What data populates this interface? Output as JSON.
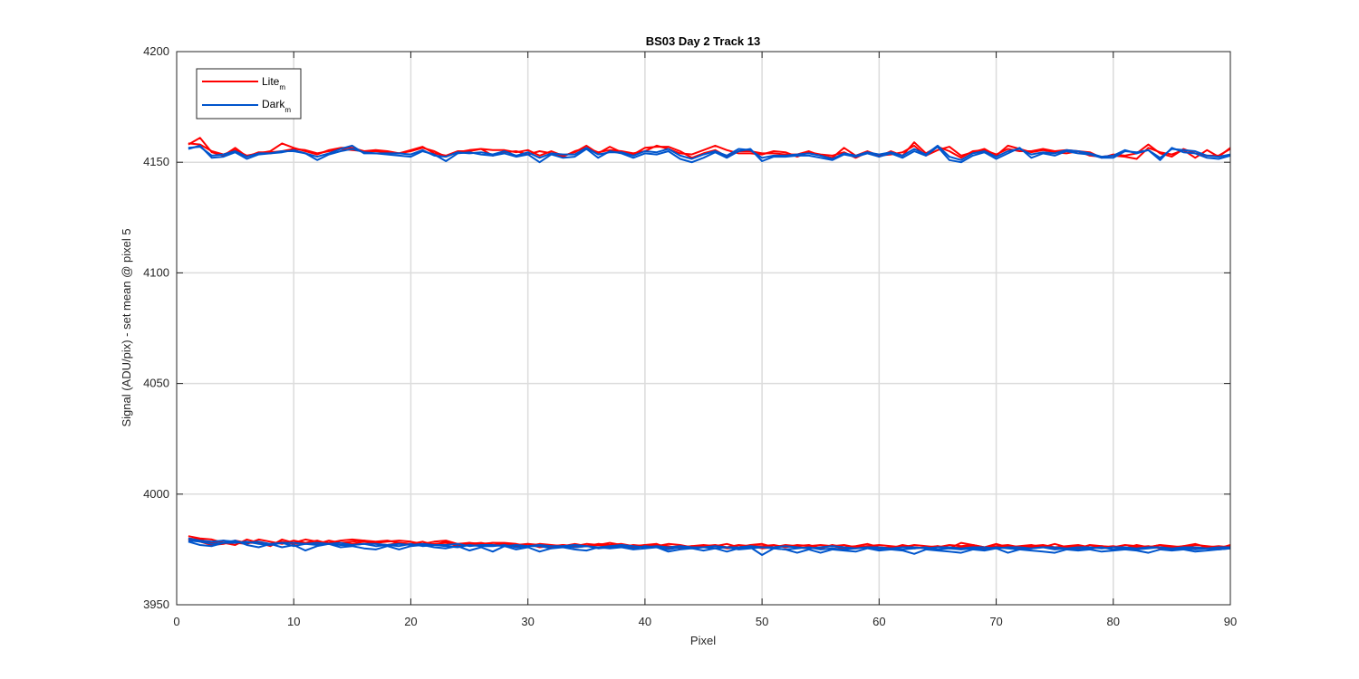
{
  "chart_data": {
    "type": "line",
    "title": "BS03 Day 2 Track 13",
    "xlabel": "Pixel",
    "ylabel": "Signal (ADU/pix) - set mean @ pixel 5",
    "xlim": [
      0,
      90
    ],
    "ylim": [
      3950,
      4200
    ],
    "xticks": [
      0,
      10,
      20,
      30,
      40,
      50,
      60,
      70,
      80,
      90
    ],
    "yticks": [
      3950,
      4000,
      4050,
      4100,
      4150,
      4200
    ],
    "grid": true,
    "legend_position": "top-left",
    "legend": [
      {
        "label": "Lite",
        "subscript": "m",
        "color": "#ff0000"
      },
      {
        "label": "Dark",
        "subscript": "m",
        "color": "#0055cc"
      }
    ],
    "x": [
      1,
      2,
      3,
      4,
      5,
      6,
      7,
      8,
      9,
      10,
      11,
      12,
      13,
      14,
      15,
      16,
      17,
      18,
      19,
      20,
      21,
      22,
      23,
      24,
      25,
      26,
      27,
      28,
      29,
      30,
      31,
      32,
      33,
      34,
      35,
      36,
      37,
      38,
      39,
      40,
      41,
      42,
      43,
      44,
      45,
      46,
      47,
      48,
      49,
      50,
      51,
      52,
      53,
      54,
      55,
      56,
      57,
      58,
      59,
      60,
      61,
      62,
      63,
      64,
      65,
      66,
      67,
      68,
      69,
      70,
      71,
      72,
      73,
      74,
      75,
      76,
      77,
      78,
      79,
      80,
      81,
      82,
      83,
      84,
      85,
      86,
      87,
      88,
      89,
      90
    ],
    "series": [
      {
        "group": "Lite",
        "color": "#ff0000",
        "values": [
          4158.5,
          4158.0,
          4155.0,
          4153.5,
          4155.5,
          4153.0,
          4154.0,
          4155.0,
          4158.5,
          4156.5,
          4155.0,
          4153.5,
          4155.5,
          4156.5,
          4156.5,
          4155.0,
          4155.0,
          4154.5,
          4154.0,
          4155.0,
          4156.5,
          4155.0,
          4152.5,
          4154.5,
          4155.5,
          4156.0,
          4155.5,
          4155.5,
          4154.5,
          4155.5,
          4153.0,
          4155.0,
          4153.0,
          4154.5,
          4157.5,
          4154.0,
          4157.0,
          4154.5,
          4153.5,
          4156.5,
          4157.0,
          4157.0,
          4155.0,
          4152.0,
          4154.0,
          4155.5,
          4152.5,
          4155.0,
          4155.0,
          4154.0,
          4154.0,
          4153.5,
          4153.5,
          4155.0,
          4153.0,
          4152.0,
          4156.5,
          4153.0,
          4155.0,
          4153.0,
          4153.5,
          4154.5,
          4157.5,
          4153.0,
          4155.5,
          4157.0,
          4153.0,
          4154.5,
          4156.0,
          4153.0,
          4157.5,
          4156.0,
          4154.5,
          4155.5,
          4154.5,
          4154.0,
          4155.0,
          4153.0,
          4152.5,
          4153.0,
          4152.5,
          4151.5,
          4156.5,
          4154.5,
          4153.5,
          4155.5,
          4152.0,
          4155.5,
          4152.5,
          4156.5
        ]
      },
      {
        "group": "Lite",
        "color": "#ff0000",
        "values": [
          4158.0,
          4161.0,
          4154.5,
          4153.0,
          4156.5,
          4152.5,
          4154.5,
          4154.5,
          4155.0,
          4156.0,
          4155.5,
          4154.0,
          4155.0,
          4156.0,
          4155.5,
          4155.0,
          4155.5,
          4155.0,
          4154.0,
          4155.5,
          4157.0,
          4154.0,
          4153.0,
          4155.0,
          4155.0,
          4156.0,
          4153.0,
          4154.5,
          4155.0,
          4153.5,
          4155.0,
          4154.0,
          4152.5,
          4155.0,
          4156.5,
          4154.5,
          4155.5,
          4155.0,
          4154.0,
          4155.0,
          4157.5,
          4156.0,
          4154.0,
          4153.5,
          4155.5,
          4157.5,
          4155.5,
          4154.0,
          4154.0,
          4153.5,
          4155.0,
          4154.5,
          4152.5,
          4154.5,
          4153.5,
          4153.0,
          4154.5,
          4152.0,
          4154.5,
          4152.5,
          4155.0,
          4153.0,
          4159.0,
          4154.0,
          4157.0,
          4155.0,
          4152.0,
          4155.0,
          4155.5,
          4153.5,
          4156.0,
          4155.0,
          4155.0,
          4156.0,
          4155.0,
          4155.5,
          4155.0,
          4154.5,
          4152.0,
          4153.5,
          4153.0,
          4154.0,
          4158.0,
          4154.0,
          4152.5,
          4156.0,
          4154.0,
          4153.0,
          4153.0,
          4156.0
        ]
      },
      {
        "group": "Dark",
        "color": "#0055cc",
        "values": [
          4156.0,
          4157.5,
          4152.0,
          4152.5,
          4154.5,
          4151.5,
          4153.5,
          4154.0,
          4154.5,
          4155.5,
          4154.0,
          4151.0,
          4153.5,
          4155.0,
          4156.0,
          4154.5,
          4154.0,
          4153.5,
          4153.0,
          4152.5,
          4155.0,
          4153.5,
          4150.5,
          4154.0,
          4154.5,
          4153.5,
          4153.0,
          4154.0,
          4152.5,
          4153.5,
          4150.0,
          4153.5,
          4152.0,
          4152.5,
          4156.0,
          4152.0,
          4155.0,
          4154.0,
          4152.0,
          4154.0,
          4153.5,
          4155.0,
          4151.5,
          4150.0,
          4152.0,
          4154.5,
          4152.0,
          4155.0,
          4156.0,
          4150.5,
          4152.5,
          4152.5,
          4153.0,
          4153.0,
          4152.0,
          4151.0,
          4153.5,
          4152.5,
          4154.0,
          4152.5,
          4154.0,
          4152.0,
          4155.0,
          4153.0,
          4157.0,
          4151.0,
          4150.0,
          4153.0,
          4154.5,
          4151.5,
          4154.0,
          4156.5,
          4152.0,
          4154.0,
          4153.0,
          4155.0,
          4154.0,
          4153.5,
          4152.0,
          4152.0,
          4155.0,
          4154.5,
          4155.5,
          4151.0,
          4156.5,
          4154.5,
          4154.0,
          4152.0,
          4151.5,
          4153.0
        ]
      },
      {
        "group": "Dark",
        "color": "#0055cc",
        "values": [
          4156.5,
          4157.0,
          4153.0,
          4153.5,
          4155.0,
          4152.5,
          4154.0,
          4154.0,
          4155.0,
          4155.0,
          4154.0,
          4152.5,
          4154.0,
          4156.0,
          4157.5,
          4154.0,
          4154.0,
          4154.0,
          4154.0,
          4153.5,
          4155.5,
          4153.0,
          4152.5,
          4154.5,
          4154.0,
          4154.5,
          4153.5,
          4155.0,
          4153.0,
          4154.5,
          4152.0,
          4154.0,
          4153.5,
          4153.5,
          4156.5,
          4153.5,
          4154.5,
          4154.5,
          4153.0,
          4155.0,
          4154.5,
          4156.0,
          4153.0,
          4151.5,
          4153.5,
          4155.0,
          4153.0,
          4156.0,
          4155.5,
          4152.0,
          4153.0,
          4153.0,
          4153.5,
          4154.0,
          4153.0,
          4151.5,
          4154.0,
          4153.0,
          4154.5,
          4153.5,
          4154.5,
          4153.0,
          4156.0,
          4153.5,
          4157.5,
          4152.5,
          4151.0,
          4154.0,
          4155.0,
          4152.5,
          4155.0,
          4156.0,
          4153.5,
          4154.5,
          4154.0,
          4155.5,
          4155.0,
          4154.0,
          4152.5,
          4153.0,
          4155.5,
          4154.0,
          4155.5,
          4152.0,
          4156.0,
          4155.5,
          4155.0,
          4153.0,
          4152.5,
          4153.5
        ]
      },
      {
        "group": "Lite",
        "color": "#ff0000",
        "values": [
          3981.0,
          3980.0,
          3979.5,
          3978.0,
          3977.0,
          3979.5,
          3978.0,
          3976.5,
          3979.5,
          3978.0,
          3979.5,
          3978.5,
          3978.0,
          3979.0,
          3979.5,
          3979.0,
          3978.5,
          3979.0,
          3978.0,
          3977.5,
          3978.5,
          3977.0,
          3978.5,
          3977.0,
          3978.0,
          3977.5,
          3978.0,
          3977.5,
          3977.0,
          3977.5,
          3976.0,
          3976.5,
          3977.0,
          3976.5,
          3977.5,
          3977.0,
          3978.0,
          3977.0,
          3976.0,
          3977.0,
          3977.5,
          3975.5,
          3976.0,
          3976.5,
          3977.0,
          3976.5,
          3977.5,
          3976.0,
          3977.0,
          3977.5,
          3976.0,
          3977.0,
          3976.5,
          3977.0,
          3975.5,
          3977.0,
          3976.0,
          3976.5,
          3977.5,
          3976.0,
          3975.5,
          3977.0,
          3976.0,
          3975.5,
          3976.5,
          3975.5,
          3978.0,
          3977.0,
          3976.0,
          3977.5,
          3976.0,
          3976.5,
          3977.0,
          3976.0,
          3977.5,
          3976.0,
          3975.5,
          3977.0,
          3976.5,
          3976.0,
          3975.5,
          3977.0,
          3976.0,
          3977.0,
          3975.5,
          3976.5,
          3977.5,
          3976.0,
          3975.5,
          3977.0
        ]
      },
      {
        "group": "Lite",
        "color": "#ff0000",
        "values": [
          3980.0,
          3979.5,
          3978.0,
          3979.0,
          3978.0,
          3977.5,
          3979.5,
          3978.5,
          3977.5,
          3979.0,
          3978.0,
          3977.5,
          3979.0,
          3978.0,
          3978.5,
          3979.0,
          3978.0,
          3978.5,
          3979.0,
          3978.5,
          3977.5,
          3978.5,
          3979.0,
          3977.5,
          3978.0,
          3977.0,
          3978.0,
          3978.0,
          3977.5,
          3976.5,
          3977.5,
          3977.0,
          3976.5,
          3977.5,
          3976.5,
          3977.5,
          3977.0,
          3977.5,
          3976.5,
          3977.0,
          3976.5,
          3977.5,
          3977.0,
          3976.0,
          3976.5,
          3977.0,
          3976.0,
          3977.0,
          3976.5,
          3976.5,
          3977.0,
          3976.0,
          3977.0,
          3976.5,
          3977.0,
          3976.5,
          3977.0,
          3976.0,
          3976.5,
          3977.0,
          3976.5,
          3976.0,
          3977.0,
          3976.5,
          3976.0,
          3977.0,
          3976.5,
          3977.0,
          3976.0,
          3976.5,
          3977.0,
          3976.0,
          3976.5,
          3977.0,
          3976.0,
          3976.5,
          3977.0,
          3976.0,
          3976.5,
          3976.0,
          3977.0,
          3976.5,
          3976.0,
          3977.0,
          3976.5,
          3976.0,
          3977.0,
          3976.5,
          3976.0,
          3976.5
        ]
      },
      {
        "group": "Lite",
        "color": "#ff0000",
        "values": [
          3979.5,
          3978.5,
          3977.0,
          3977.5,
          3979.0,
          3978.0,
          3978.0,
          3977.5,
          3978.5,
          3977.5,
          3978.0,
          3979.0,
          3977.5,
          3978.0,
          3977.5,
          3978.5,
          3977.5,
          3977.0,
          3978.0,
          3977.5,
          3977.0,
          3977.5,
          3978.0,
          3976.5,
          3977.5,
          3978.0,
          3977.0,
          3977.0,
          3976.5,
          3977.5,
          3977.0,
          3976.0,
          3977.0,
          3976.0,
          3976.5,
          3977.0,
          3976.5,
          3976.0,
          3977.0,
          3976.5,
          3977.0,
          3976.5,
          3975.5,
          3976.5,
          3976.0,
          3976.5,
          3975.5,
          3976.0,
          3976.5,
          3975.5,
          3976.0,
          3976.5,
          3976.0,
          3975.5,
          3976.0,
          3976.5,
          3975.5,
          3976.0,
          3976.5,
          3975.5,
          3976.0,
          3976.5,
          3975.5,
          3976.0,
          3976.5,
          3975.5,
          3976.0,
          3976.5,
          3975.5,
          3976.0,
          3976.5,
          3975.5,
          3976.0,
          3976.5,
          3975.5,
          3976.0,
          3976.5,
          3975.5,
          3976.0,
          3976.5,
          3975.5,
          3976.0,
          3976.5,
          3975.5,
          3976.0,
          3976.5,
          3975.5,
          3976.0,
          3976.5,
          3976.0
        ]
      },
      {
        "group": "Dark",
        "color": "#0055cc",
        "values": [
          3978.5,
          3977.0,
          3976.5,
          3978.0,
          3979.0,
          3977.0,
          3976.0,
          3977.5,
          3976.0,
          3977.0,
          3974.5,
          3976.5,
          3977.5,
          3976.0,
          3976.5,
          3975.5,
          3975.0,
          3976.5,
          3975.0,
          3976.5,
          3977.0,
          3976.0,
          3975.5,
          3976.5,
          3974.5,
          3976.0,
          3974.0,
          3976.5,
          3975.0,
          3976.0,
          3974.0,
          3975.5,
          3976.0,
          3975.0,
          3974.5,
          3976.0,
          3975.5,
          3976.0,
          3975.0,
          3975.5,
          3976.0,
          3974.0,
          3975.0,
          3975.5,
          3974.5,
          3975.5,
          3974.0,
          3975.5,
          3976.0,
          3972.5,
          3975.5,
          3975.0,
          3973.5,
          3975.0,
          3973.5,
          3975.0,
          3974.5,
          3974.0,
          3975.5,
          3974.5,
          3975.0,
          3974.5,
          3973.0,
          3975.0,
          3974.5,
          3974.0,
          3973.5,
          3975.0,
          3974.5,
          3975.5,
          3973.5,
          3975.0,
          3974.5,
          3974.0,
          3973.5,
          3975.0,
          3974.5,
          3975.0,
          3974.0,
          3974.5,
          3975.0,
          3974.5,
          3973.5,
          3975.0,
          3974.5,
          3975.0,
          3974.0,
          3974.5,
          3975.0,
          3975.5
        ]
      },
      {
        "group": "Dark",
        "color": "#0055cc",
        "values": [
          3979.0,
          3978.5,
          3977.5,
          3978.0,
          3978.0,
          3978.5,
          3977.5,
          3977.0,
          3978.0,
          3976.5,
          3977.5,
          3977.0,
          3977.5,
          3977.0,
          3977.0,
          3977.5,
          3976.5,
          3977.0,
          3976.5,
          3977.5,
          3976.5,
          3977.0,
          3976.5,
          3976.0,
          3977.0,
          3976.5,
          3976.5,
          3977.0,
          3976.0,
          3976.5,
          3976.5,
          3975.5,
          3976.5,
          3976.0,
          3976.5,
          3975.5,
          3976.0,
          3976.5,
          3975.5,
          3976.5,
          3976.0,
          3975.0,
          3976.0,
          3975.5,
          3976.0,
          3975.5,
          3976.0,
          3975.0,
          3975.5,
          3976.0,
          3975.5,
          3975.0,
          3975.5,
          3976.0,
          3975.0,
          3975.5,
          3975.0,
          3975.5,
          3976.0,
          3975.0,
          3975.5,
          3975.0,
          3975.5,
          3976.0,
          3975.0,
          3975.5,
          3975.0,
          3975.5,
          3975.0,
          3976.0,
          3975.5,
          3975.0,
          3975.5,
          3976.0,
          3975.0,
          3975.5,
          3975.0,
          3975.5,
          3976.0,
          3975.0,
          3975.5,
          3975.0,
          3975.5,
          3976.0,
          3975.0,
          3975.5,
          3975.0,
          3975.5,
          3975.0,
          3975.5
        ]
      },
      {
        "group": "Dark",
        "color": "#0055cc",
        "values": [
          3980.0,
          3979.0,
          3978.5,
          3979.0,
          3978.5,
          3978.0,
          3978.5,
          3977.5,
          3978.0,
          3978.0,
          3977.5,
          3978.0,
          3977.5,
          3978.0,
          3977.0,
          3977.5,
          3977.5,
          3977.0,
          3977.5,
          3977.0,
          3977.5,
          3977.0,
          3977.0,
          3977.5,
          3976.5,
          3977.0,
          3977.0,
          3976.5,
          3977.0,
          3976.5,
          3977.0,
          3976.5,
          3976.5,
          3977.0,
          3976.5,
          3976.0,
          3976.5,
          3977.0,
          3976.5,
          3976.0,
          3976.5,
          3976.0,
          3976.5,
          3976.0,
          3976.0,
          3976.5,
          3976.0,
          3976.0,
          3976.5,
          3976.0,
          3976.0,
          3976.5,
          3976.0,
          3975.5,
          3976.0,
          3976.5,
          3976.0,
          3975.5,
          3976.0,
          3976.0,
          3975.5,
          3976.0,
          3976.0,
          3975.5,
          3976.0,
          3976.0,
          3975.5,
          3976.0,
          3976.0,
          3975.5,
          3976.0,
          3976.0,
          3975.5,
          3976.0,
          3976.0,
          3975.5,
          3976.0,
          3976.0,
          3975.5,
          3976.0,
          3976.0,
          3975.5,
          3976.0,
          3976.0,
          3975.5,
          3976.0,
          3976.0,
          3975.5,
          3976.0,
          3976.0
        ]
      }
    ]
  }
}
